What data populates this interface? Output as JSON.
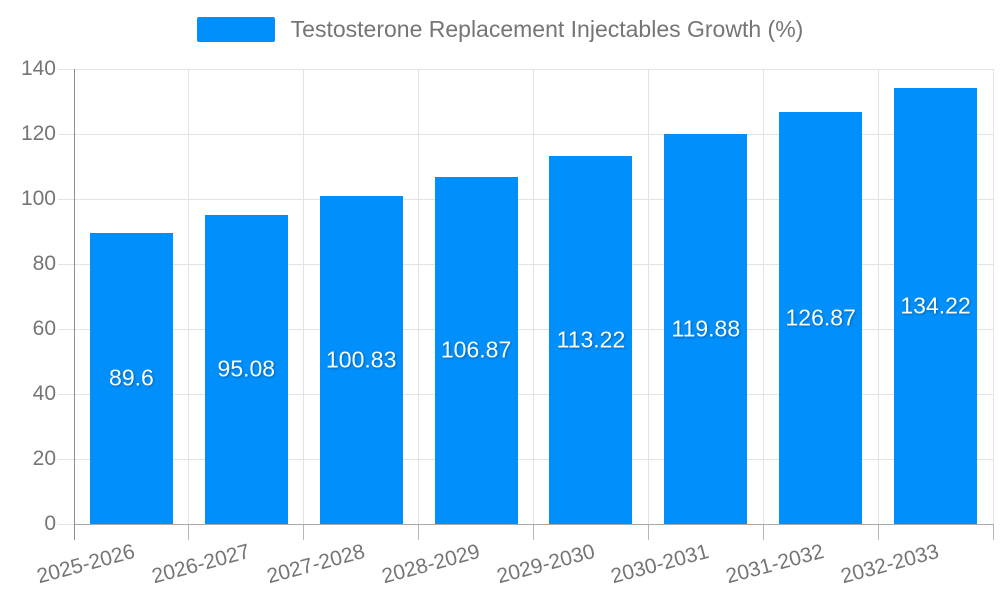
{
  "legend": {
    "label": "Testosterone Replacement Injectables Growth (%)",
    "marker_color": "#008FFB"
  },
  "chart_data": {
    "type": "bar",
    "title": "Testosterone Replacement Injectables Growth (%)",
    "series_name": "Testosterone Replacement Injectables Growth (%)",
    "categories": [
      "2025-2026",
      "2026-2027",
      "2027-2028",
      "2028-2029",
      "2029-2030",
      "2030-2031",
      "2031-2032",
      "2032-2033"
    ],
    "values": [
      89.6,
      95.08,
      100.83,
      106.87,
      113.22,
      119.88,
      126.87,
      134.22
    ],
    "xlabel": "",
    "ylabel": "",
    "ylim": [
      0,
      140
    ],
    "yticks": [
      0,
      20,
      40,
      60,
      80,
      100,
      120,
      140
    ],
    "grid": true,
    "legend_position": "top",
    "bar_color": "#008FFB",
    "data_label_color": "#ffffff",
    "axis_text_color": "#757575",
    "grid_color": "#e3e3e3"
  }
}
